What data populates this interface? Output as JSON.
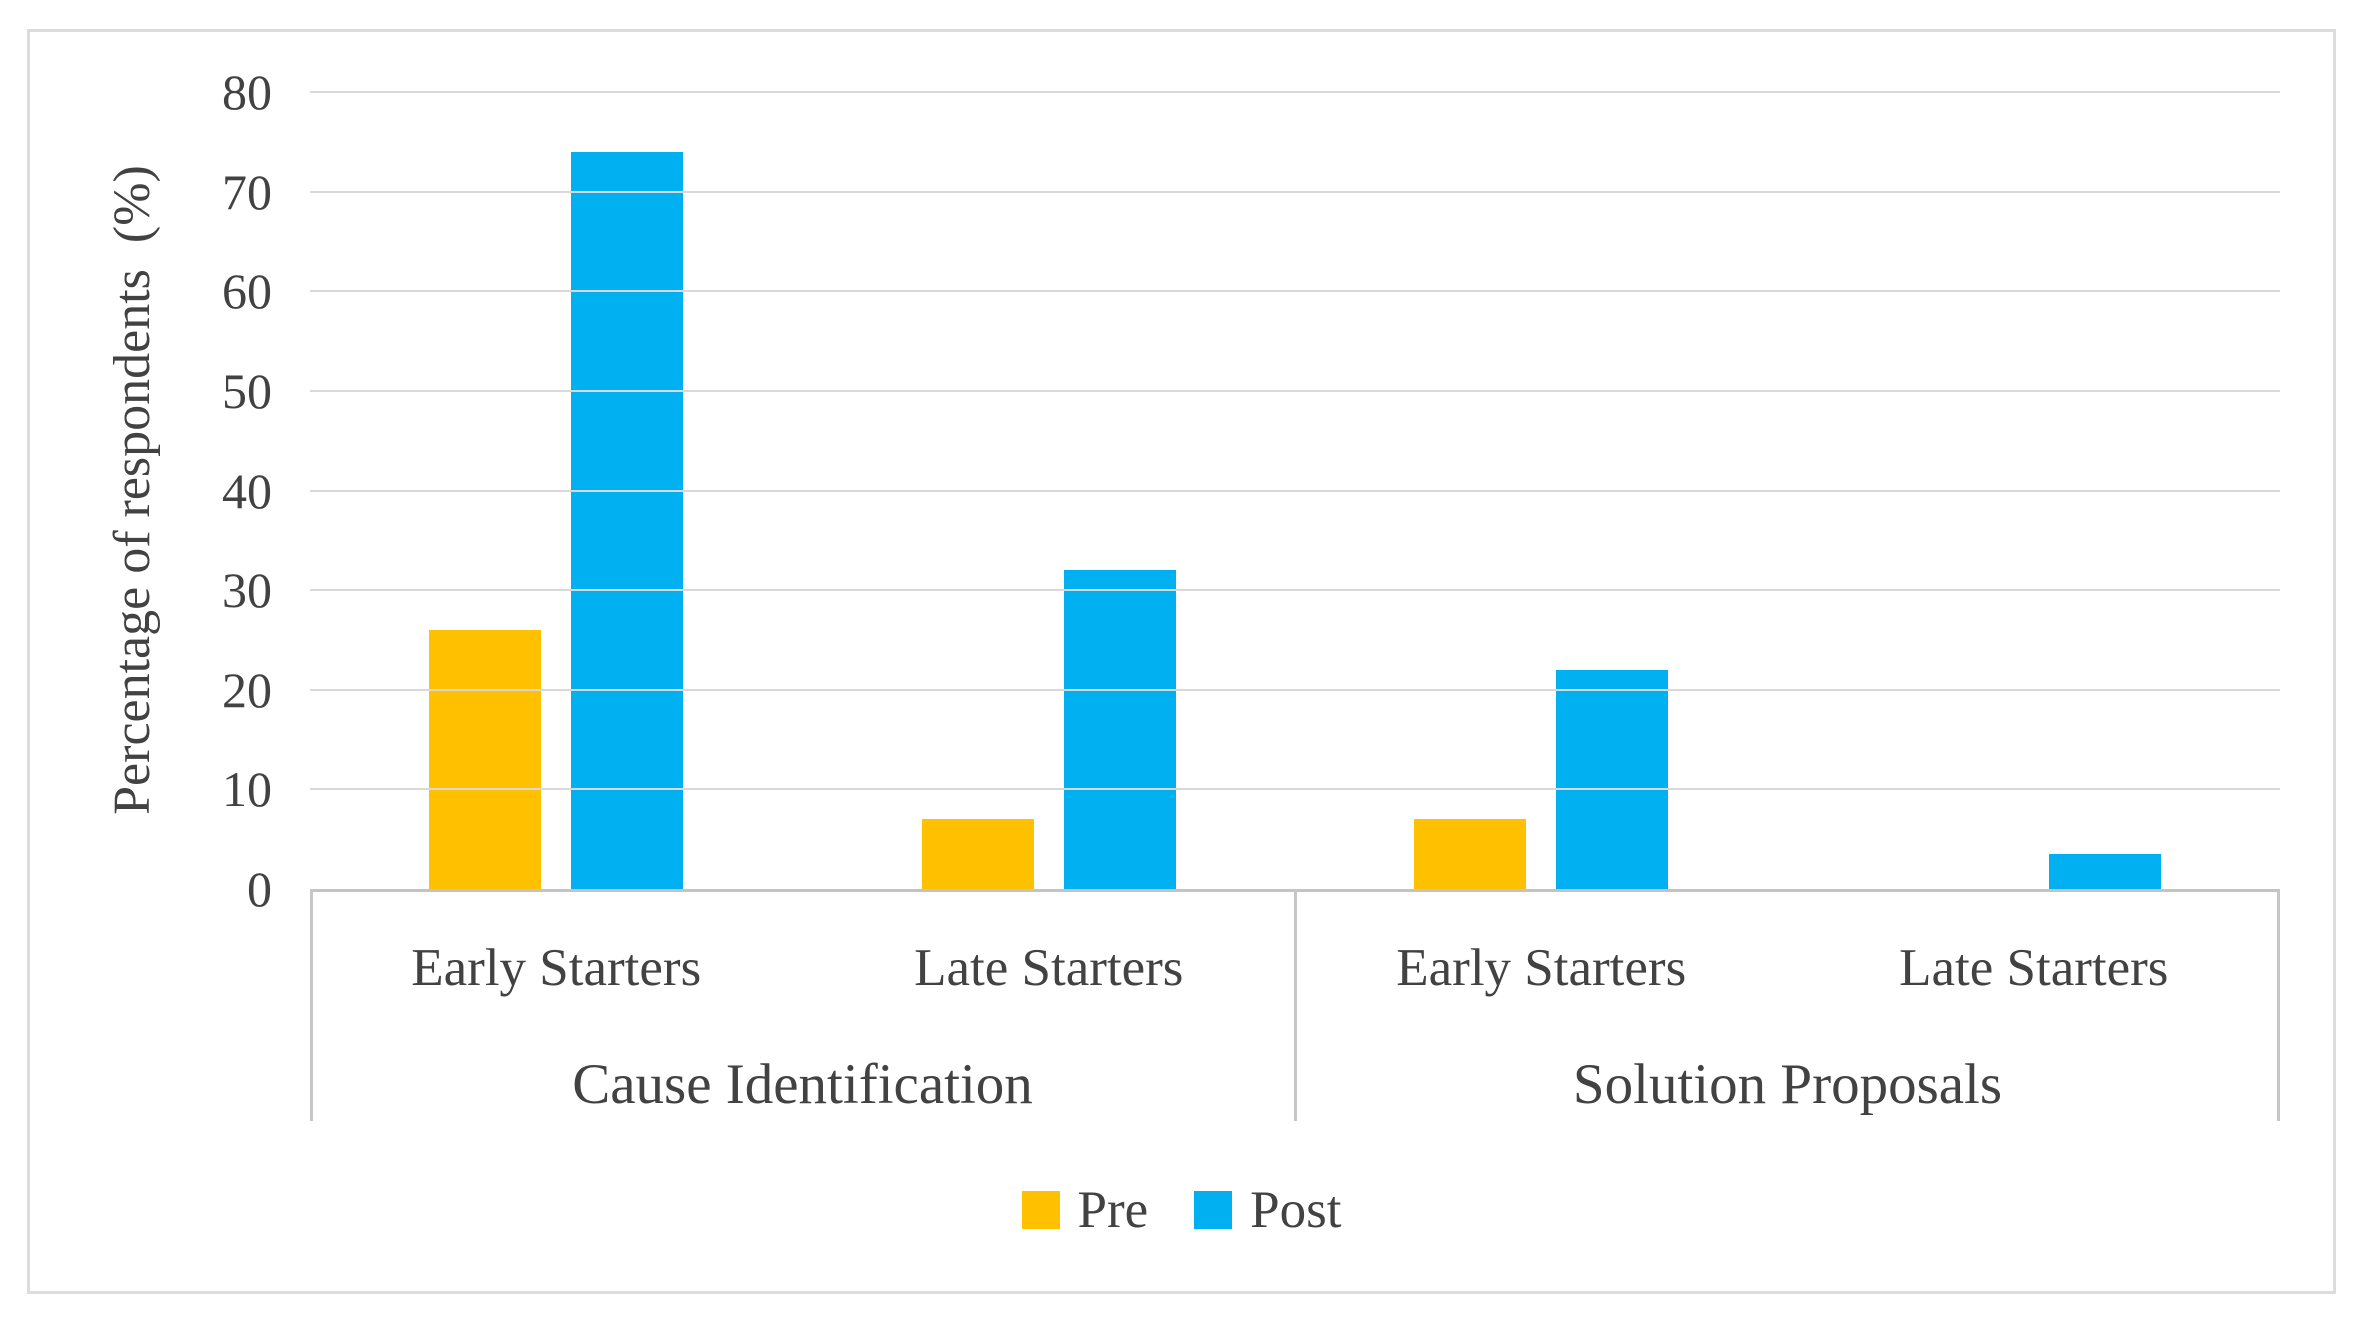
{
  "figure": {
    "background": "#ffffff",
    "border_color": "#dcdcdc"
  },
  "styles": {
    "text_color": "#424242",
    "gridline_color": "#d9d9d9",
    "axis_line_color": "#c3c3c3",
    "separator_color": "#c6c6c6"
  },
  "chart_data": {
    "type": "bar",
    "title": "",
    "xlabel": "",
    "ylabel": "Percentage of respondents  (%)",
    "ylim": [
      0,
      80
    ],
    "ytick_step": 10,
    "yticks": [
      80,
      70,
      60,
      50,
      40,
      30,
      20,
      10,
      0
    ],
    "grid": true,
    "legend_position": "bottom",
    "categories": [
      "Early Starters",
      "Late Starters",
      "Early Starters",
      "Late Starters"
    ],
    "groups": [
      {
        "label": "Cause Identification",
        "categories": [
          "Early Starters",
          "Late Starters"
        ]
      },
      {
        "label": "Solution Proposals",
        "categories": [
          "Early Starters",
          "Late Starters"
        ]
      }
    ],
    "series": [
      {
        "name": "Pre",
        "color": "#FFC000",
        "values": [
          26,
          7,
          7,
          0
        ]
      },
      {
        "name": "Post",
        "color": "#00B0F0",
        "values": [
          74,
          32,
          22,
          3.5
        ]
      }
    ]
  },
  "legend": {
    "items": [
      {
        "label": "Pre",
        "color": "#FFC000"
      },
      {
        "label": "Post",
        "color": "#00B0F0"
      }
    ]
  }
}
